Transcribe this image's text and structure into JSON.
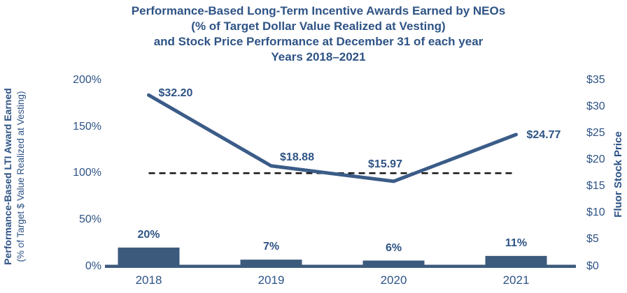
{
  "title": {
    "line1": "Performance-Based Long-Term Incentive Awards Earned by NEOs",
    "line2": "(% of Target Dollar Value Realized at Vesting)",
    "line3": "and Stock Price Performance at December 31 of each year",
    "line4": "Years 2018–2021"
  },
  "left_axis": {
    "title_bold": "Performance-Based LTI Award Earned",
    "title_sub": "(% of Target $ Value Realized at Vesting)",
    "tick_labels": [
      "200%",
      "150%",
      "100%",
      "50%",
      "0%"
    ],
    "tick_values": [
      200,
      150,
      100,
      50,
      0
    ]
  },
  "right_axis": {
    "title": "Fluor Stock Price",
    "tick_labels": [
      "$35",
      "$30",
      "$25",
      "$20",
      "$15",
      "$10",
      "$5",
      "$0"
    ],
    "tick_values": [
      35,
      30,
      25,
      20,
      15,
      10,
      5,
      0
    ]
  },
  "chart_data": {
    "type": "bar",
    "subtype": "combo-bar-line",
    "title": "Performance-Based Long-Term Incentive Awards Earned by NEOs (% of Target Dollar Value Realized at Vesting) and Stock Price Performance at December 31 of each year, Years 2018–2021",
    "categories": [
      "2018",
      "2019",
      "2020",
      "2021"
    ],
    "series": [
      {
        "name": "Performance-Based LTI Award Earned",
        "type": "bar",
        "axis": "left",
        "values": [
          20,
          7,
          6,
          11
        ],
        "labels": [
          "20%",
          "7%",
          "6%",
          "11%"
        ]
      },
      {
        "name": "Fluor Stock Price",
        "type": "line",
        "axis": "right",
        "values": [
          32.2,
          18.88,
          15.97,
          24.77
        ],
        "labels": [
          "$32.20",
          "$18.88",
          "$15.97",
          "$24.77"
        ]
      },
      {
        "name": "100% of Target (reference)",
        "type": "dashed-line",
        "axis": "left",
        "values": [
          100,
          100,
          100,
          100
        ]
      }
    ],
    "xlabel": "",
    "ylabel_left": "Performance-Based LTI Award Earned (% of Target $ Value Realized at Vesting)",
    "ylabel_right": "Fluor Stock Price",
    "left_ylim": [
      0,
      200
    ],
    "right_ylim": [
      0,
      35
    ],
    "grid": false,
    "legend": false
  },
  "colors": {
    "navy_text": "#2E5385",
    "bar_fill": "#3C5A7C",
    "line_stroke": "#3B5C88",
    "axis_line": "#3C5A7C",
    "dashed_line": "#141414"
  }
}
